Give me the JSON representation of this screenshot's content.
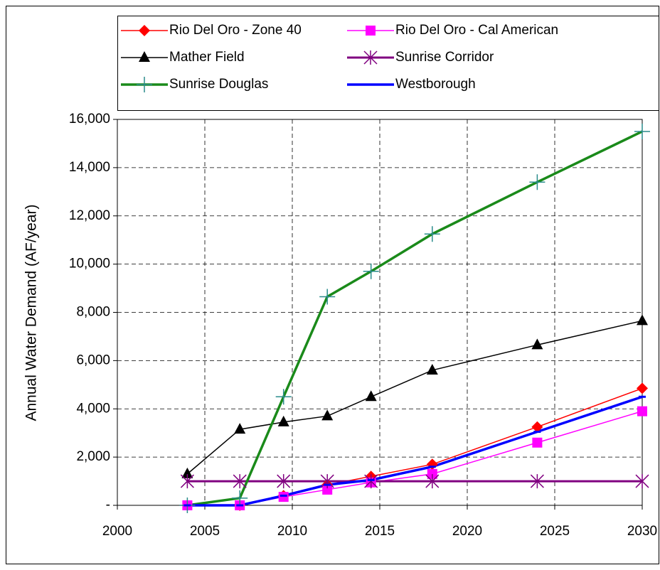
{
  "chart_data": {
    "type": "line",
    "y_label": "Annual Water Demand (AF/year)",
    "x": [
      2004,
      2007,
      2009.5,
      2012,
      2014.5,
      2018,
      2024,
      2030
    ],
    "xlim": [
      2000,
      2030
    ],
    "xticks": [
      2000,
      2005,
      2010,
      2015,
      2020,
      2025,
      2030
    ],
    "ylim": [
      0,
      16000
    ],
    "yticks": [
      {
        "value": 0,
        "label": "-"
      },
      {
        "value": 2000,
        "label": "2,000"
      },
      {
        "value": 4000,
        "label": "4,000"
      },
      {
        "value": 6000,
        "label": "6,000"
      },
      {
        "value": 8000,
        "label": "8,000"
      },
      {
        "value": 10000,
        "label": "10,000"
      },
      {
        "value": 12000,
        "label": "12,000"
      },
      {
        "value": 14000,
        "label": "14,000"
      },
      {
        "value": 16000,
        "label": "16,000"
      }
    ],
    "grid": true,
    "legend": "top",
    "series": [
      {
        "name": "Rio Del Oro - Zone 40",
        "color": "#ff0000",
        "marker": "diamond",
        "values": [
          0,
          0,
          400,
          850,
          1200,
          1700,
          3250,
          4850
        ]
      },
      {
        "name": "Rio Del Oro - Cal American",
        "color": "#ff00ff",
        "marker": "square",
        "values": [
          0,
          0,
          350,
          650,
          950,
          1300,
          2600,
          3900
        ]
      },
      {
        "name": "Mather Field",
        "color": "#000000",
        "marker": "triangle",
        "values": [
          1300,
          3150,
          3450,
          3700,
          4500,
          5600,
          6650,
          7650
        ]
      },
      {
        "name": "Sunrise Corridor",
        "color": "#800080",
        "marker": "star",
        "values": [
          1000,
          1000,
          1000,
          1000,
          1000,
          1000,
          1000,
          1000
        ]
      },
      {
        "name": "Sunrise Douglas",
        "color": "#1a8a1a",
        "marker": "plus",
        "values": [
          0,
          300,
          4500,
          8650,
          9700,
          11250,
          13400,
          15500
        ]
      },
      {
        "name": "Westborough",
        "color": "#0000ff",
        "marker": "dash",
        "values": [
          0,
          0,
          400,
          850,
          1050,
          1600,
          3050,
          4500
        ]
      }
    ]
  }
}
